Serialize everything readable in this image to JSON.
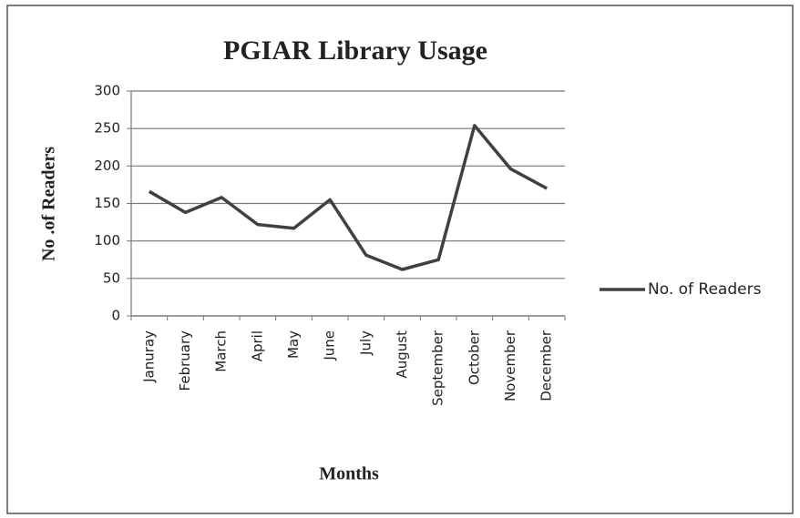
{
  "chart_data": {
    "type": "line",
    "title": "PGIAR Library Usage",
    "x_label": "Months",
    "y_label": "No .of Readers",
    "categories": [
      "Januray",
      "February",
      "March",
      "April",
      "May",
      "June",
      "July",
      "August",
      "September",
      "October",
      "November",
      "December"
    ],
    "series": [
      {
        "name": "No. of Readers",
        "color": "#404040",
        "values": [
          166,
          138,
          158,
          122,
          117,
          155,
          81,
          62,
          75,
          254,
          196,
          170
        ]
      }
    ],
    "ylim": [
      0,
      300
    ],
    "yticks": [
      0,
      50,
      100,
      150,
      200,
      250,
      300
    ],
    "grid": true,
    "legend": "right"
  }
}
